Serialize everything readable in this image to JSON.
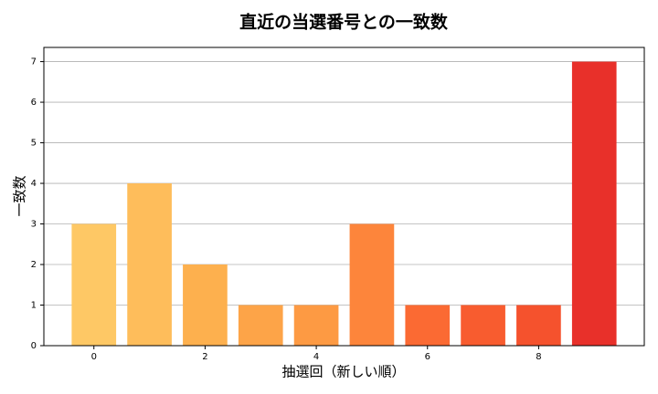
{
  "chart_data": {
    "type": "bar",
    "title": "直近の当選番号との一致数",
    "x_label": "抽選回（新しい順）",
    "y_label": "一致数",
    "x": [
      0,
      1,
      2,
      3,
      4,
      5,
      6,
      7,
      8,
      9
    ],
    "values": [
      3,
      4,
      2,
      1,
      1,
      3,
      1,
      1,
      1,
      7
    ],
    "colors": [
      "#fec865",
      "#febd5b",
      "#fdb04e",
      "#fda448",
      "#fd9a43",
      "#fd853b",
      "#fb6a33",
      "#f85c2f",
      "#f5522d",
      "#e8302a"
    ],
    "xlim": [
      -0.9,
      9.9
    ],
    "xticks": [
      0,
      2,
      4,
      6,
      8
    ],
    "ylim": [
      0,
      7.35
    ],
    "yticks": [
      0,
      1,
      2,
      3,
      4,
      5,
      6,
      7
    ],
    "grid": true
  }
}
